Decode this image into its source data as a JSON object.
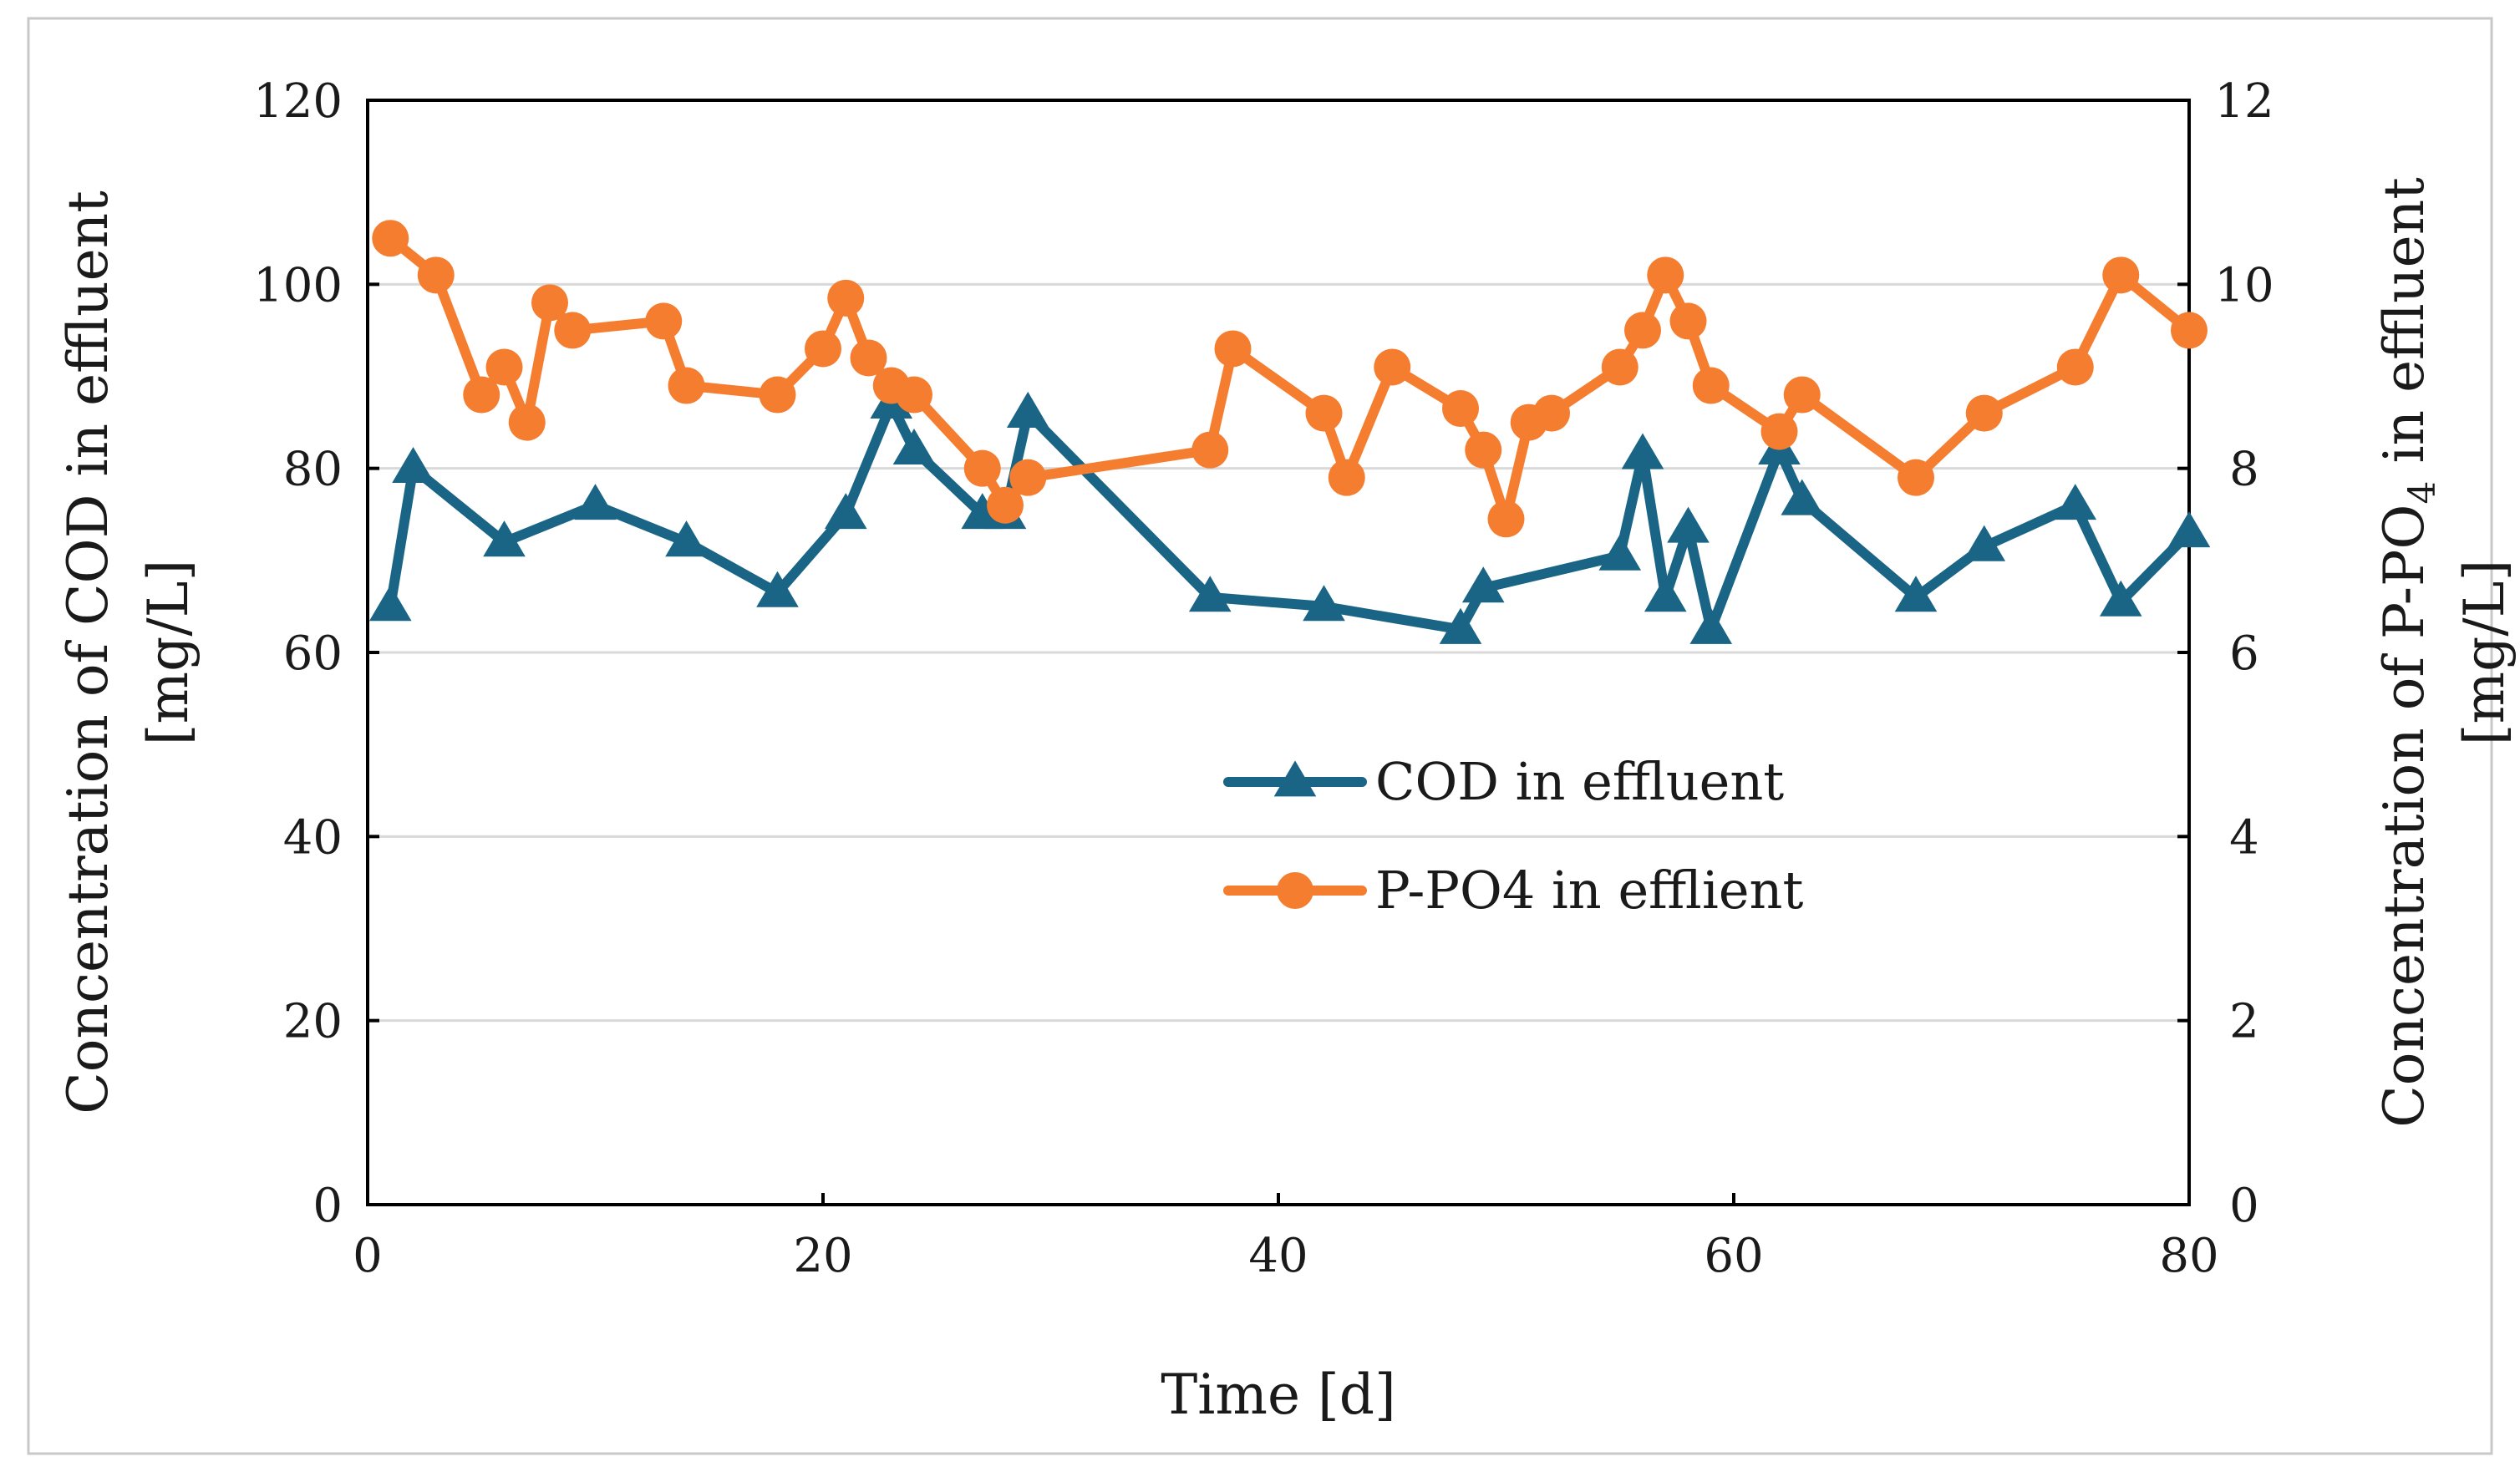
{
  "chart_data": {
    "type": "line",
    "title": "",
    "xlabel": "Time [d]",
    "ylabel_left": {
      "line1": "Concentration of COD in  effluent",
      "line2": "[mg/L]"
    },
    "ylabel_right": {
      "line1_prefix": "Concentration of P-PO",
      "line1_sub": "4",
      "line1_suffix": " in effluent",
      "line2": "[mg/L]"
    },
    "xlim": [
      0,
      80
    ],
    "ylim_left": [
      0,
      120
    ],
    "ylim_right": [
      0,
      12
    ],
    "xticks": [
      "0",
      "20",
      "40",
      "60",
      "80"
    ],
    "yticks_left": [
      "0",
      "20",
      "40",
      "60",
      "80",
      "100",
      "120"
    ],
    "yticks_right": [
      "0",
      "2",
      "4",
      "6",
      "8",
      "10",
      "12"
    ],
    "grid": true,
    "legend_position": "center",
    "series": [
      {
        "name": "COD in effluent",
        "axis": "left",
        "color": "#1a6585",
        "marker": "triangle",
        "x": [
          1,
          2,
          6,
          10,
          14,
          18,
          21,
          23,
          24,
          27,
          28,
          29,
          37,
          42,
          48,
          49,
          55,
          56,
          57,
          58,
          59,
          62,
          63,
          68,
          71,
          75,
          77,
          80
        ],
        "y": [
          65,
          80,
          72,
          76,
          72,
          66.5,
          75,
          87,
          82,
          75,
          75,
          86,
          66,
          65,
          62.5,
          67,
          70.5,
          81.5,
          66,
          73.5,
          62.5,
          82,
          76.5,
          66,
          71.5,
          76,
          65.5,
          73
        ]
      },
      {
        "name": "P-PO4 in efflient",
        "axis": "right",
        "color": "#f57d2f",
        "marker": "circle",
        "x": [
          1,
          3,
          5,
          6,
          7,
          8,
          9,
          13,
          14,
          18,
          20,
          21,
          22,
          23,
          24,
          27,
          28,
          29,
          37,
          38,
          42,
          43,
          45,
          48,
          49,
          50,
          51,
          52,
          55,
          56,
          57,
          58,
          59,
          62,
          63,
          68,
          71,
          75,
          77,
          80
        ],
        "y": [
          10.5,
          10.1,
          8.8,
          9.1,
          8.5,
          9.8,
          9.5,
          9.6,
          8.9,
          8.8,
          9.3,
          9.85,
          9.2,
          8.9,
          8.8,
          8.0,
          7.6,
          7.9,
          8.2,
          9.3,
          8.6,
          7.9,
          9.1,
          8.65,
          8.2,
          7.45,
          8.5,
          8.6,
          9.1,
          9.5,
          10.1,
          9.6,
          8.9,
          8.4,
          8.8,
          7.9,
          8.6,
          9.1,
          10.1,
          9.5
        ]
      }
    ]
  }
}
